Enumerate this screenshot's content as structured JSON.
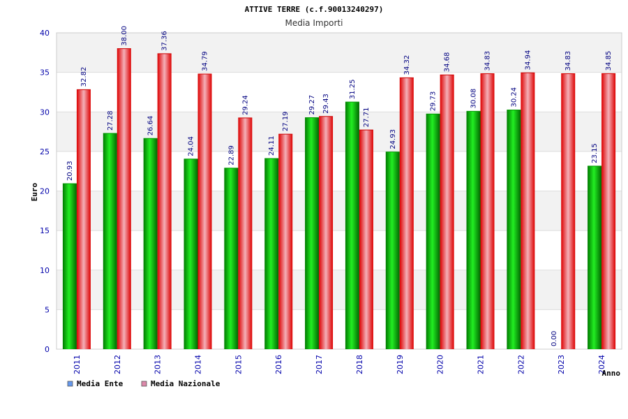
{
  "chart_data": {
    "type": "bar",
    "title": "ATTIVE TERRE (c.f.90013240297)",
    "subtitle": "Media Importi",
    "ylabel": "Euro",
    "xlabel": "Anno",
    "ylim": [
      0,
      40
    ],
    "yticks": [
      0,
      5,
      10,
      15,
      20,
      25,
      30,
      35,
      40
    ],
    "grid": true,
    "legend_position": "bottom-left",
    "categories": [
      "2011",
      "2012",
      "2013",
      "2014",
      "2015",
      "2016",
      "2017",
      "2018",
      "2019",
      "2020",
      "2021",
      "2022",
      "2023",
      "2024"
    ],
    "series": [
      {
        "name": "Media Ente",
        "color": "#00aa00",
        "legend_color": "#6699ee",
        "values": [
          20.93,
          27.28,
          26.64,
          24.04,
          22.89,
          24.11,
          29.27,
          31.25,
          24.93,
          29.73,
          30.08,
          30.24,
          0.0,
          23.15
        ],
        "labels": [
          "20.93",
          "27.28",
          "26.64",
          "24.04",
          "22.89",
          "24.11",
          "29.27",
          "31.25",
          "24.93",
          "29.73",
          "30.08",
          "30.24",
          "0.00",
          "23.15"
        ]
      },
      {
        "name": "Media Nazionale",
        "color": "#ee0000",
        "legend_color": "#dd88aa",
        "values": [
          32.82,
          38.0,
          37.36,
          34.79,
          29.24,
          27.19,
          29.43,
          27.71,
          34.32,
          34.68,
          34.83,
          34.94,
          34.83,
          34.85
        ],
        "labels": [
          "32.82",
          "38.00",
          "37.36",
          "34.79",
          "29.24",
          "27.19",
          "29.43",
          "27.71",
          "34.32",
          "34.68",
          "34.83",
          "34.94",
          "34.83",
          "34.85"
        ]
      }
    ]
  }
}
